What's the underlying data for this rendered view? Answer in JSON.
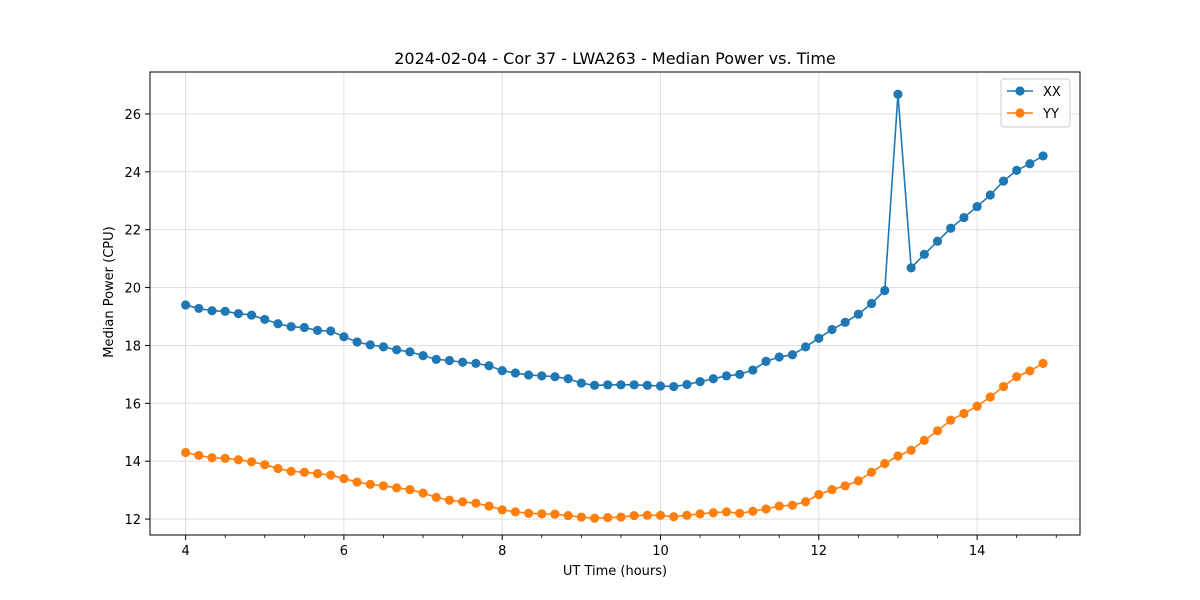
{
  "chart_data": {
    "type": "line",
    "title": "2024-02-04 - Cor 37 - LWA263 - Median Power vs. Time",
    "xlabel": "UT Time (hours)",
    "ylabel": "Median Power (CPU)",
    "xlim": [
      3.55,
      15.3
    ],
    "ylim": [
      11.45,
      27.45
    ],
    "xticks": [
      4,
      6,
      8,
      10,
      12,
      14
    ],
    "xtick_labels": [
      "4",
      "6",
      "8",
      "10",
      "12",
      "14"
    ],
    "yticks": [
      12,
      14,
      16,
      18,
      20,
      22,
      24,
      26
    ],
    "ytick_labels": [
      "12",
      "14",
      "16",
      "18",
      "20",
      "22",
      "24",
      "26"
    ],
    "grid": true,
    "legend_position": "top-right",
    "x": [
      4.0,
      4.1667,
      4.3333,
      4.5,
      4.6667,
      4.8333,
      5.0,
      5.1667,
      5.3333,
      5.5,
      5.6667,
      5.8333,
      6.0,
      6.1667,
      6.3333,
      6.5,
      6.6667,
      6.8333,
      7.0,
      7.1667,
      7.3333,
      7.5,
      7.6667,
      7.8333,
      8.0,
      8.1667,
      8.3333,
      8.5,
      8.6667,
      8.8333,
      9.0,
      9.1667,
      9.3333,
      9.5,
      9.6667,
      9.8333,
      10.0,
      10.1667,
      10.3333,
      10.5,
      10.6667,
      10.8333,
      11.0,
      11.1667,
      11.3333,
      11.5,
      11.6667,
      11.8333,
      12.0,
      12.1667,
      12.3333,
      12.5,
      12.6667,
      12.8333,
      13.0,
      13.1667,
      13.3333,
      13.5,
      13.6667,
      13.8333,
      14.0,
      14.1667,
      14.3333,
      14.5,
      14.6667,
      14.8333
    ],
    "series": [
      {
        "name": "XX",
        "color": "#1f77b4",
        "values": [
          19.4,
          19.28,
          19.2,
          19.18,
          19.1,
          19.05,
          18.9,
          18.75,
          18.65,
          18.62,
          18.52,
          18.5,
          18.3,
          18.12,
          18.02,
          17.95,
          17.85,
          17.78,
          17.65,
          17.52,
          17.48,
          17.42,
          17.38,
          17.3,
          17.13,
          17.05,
          16.98,
          16.95,
          16.92,
          16.85,
          16.7,
          16.62,
          16.64,
          16.64,
          16.64,
          16.62,
          16.6,
          16.58,
          16.65,
          16.75,
          16.85,
          16.95,
          17.0,
          17.15,
          17.45,
          17.6,
          17.68,
          17.95,
          18.25,
          18.55,
          18.8,
          19.08,
          19.45,
          19.9,
          26.68,
          20.68,
          21.15,
          21.6,
          22.05,
          22.42,
          22.8,
          23.2,
          23.68,
          24.05,
          24.28,
          24.55
        ]
      },
      {
        "name": "YY",
        "color": "#ff7f0e",
        "values": [
          14.3,
          14.2,
          14.12,
          14.1,
          14.05,
          13.98,
          13.88,
          13.75,
          13.65,
          13.62,
          13.57,
          13.52,
          13.4,
          13.28,
          13.2,
          13.15,
          13.08,
          13.02,
          12.9,
          12.75,
          12.65,
          12.6,
          12.55,
          12.45,
          12.32,
          12.25,
          12.2,
          12.18,
          12.17,
          12.12,
          12.07,
          12.03,
          12.05,
          12.07,
          12.12,
          12.13,
          12.13,
          12.08,
          12.13,
          12.18,
          12.22,
          12.25,
          12.2,
          12.27,
          12.35,
          12.45,
          12.48,
          12.6,
          12.85,
          13.02,
          13.15,
          13.32,
          13.62,
          13.92,
          14.18,
          14.38,
          14.72,
          15.05,
          15.42,
          15.65,
          15.9,
          16.22,
          16.58,
          16.92,
          17.12,
          17.38
        ]
      }
    ]
  }
}
